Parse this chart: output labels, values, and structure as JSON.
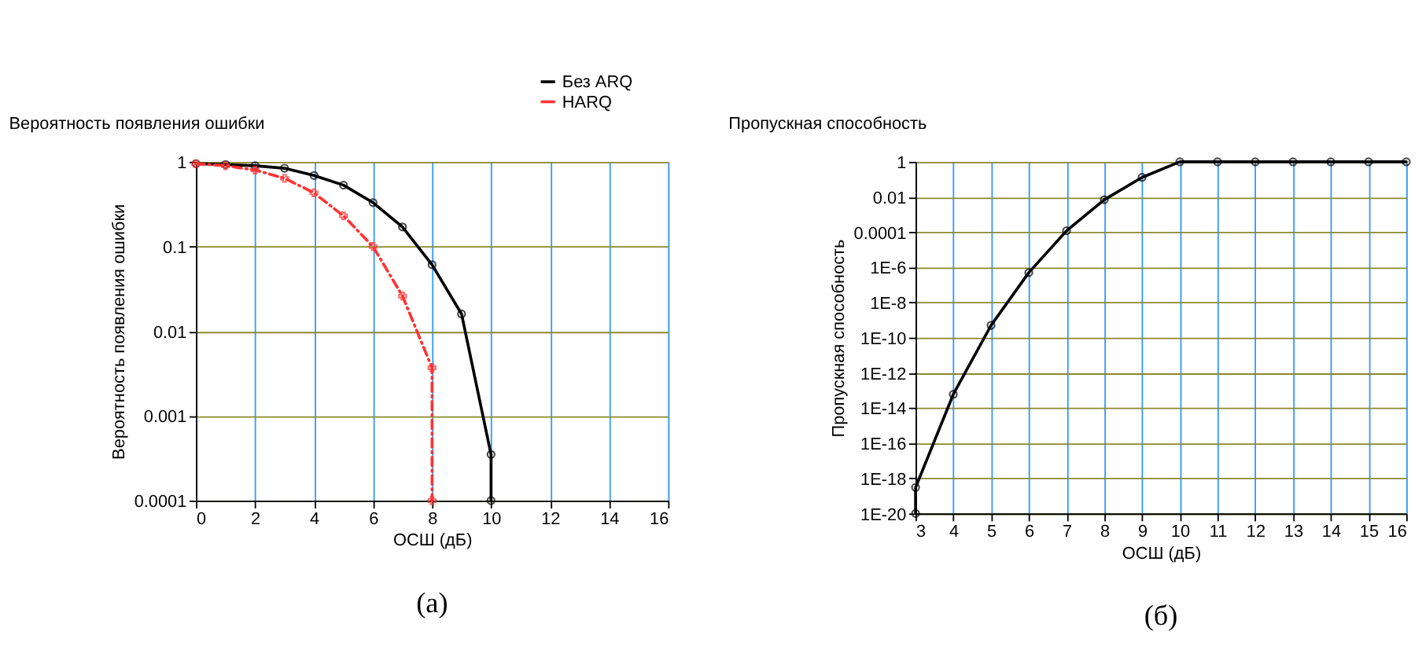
{
  "chart_data": [
    {
      "type": "line",
      "title": "Вероятность появления ошибки",
      "xlabel": "ОСШ (дБ)",
      "ylabel": "Вероятность появления ошибки",
      "log": "y",
      "grid": true,
      "legend": "top right",
      "xlim": [
        0,
        16
      ],
      "xticks": [
        0,
        2,
        4,
        6,
        8,
        10,
        12,
        14,
        16
      ],
      "ylim": [
        0.0001,
        1
      ],
      "yticks": [
        0.0001,
        0.001,
        0.01,
        0.1,
        1
      ],
      "annotations": [
        "(а)"
      ],
      "series": [
        {
          "name": "Без ARQ",
          "color": "#000000",
          "marker": "circle",
          "line_style": "solid",
          "x": [
            0,
            1,
            2,
            3,
            4,
            5,
            6,
            7,
            8,
            9,
            10,
            10
          ],
          "values": [
            0.95,
            0.93,
            0.9,
            0.84,
            0.69,
            0.53,
            0.33,
            0.17,
            0.061,
            0.016,
            0.00035,
            0.0001
          ]
        },
        {
          "name": "HARQ",
          "color": "#ff3333",
          "marker": "cross",
          "line_style": "dashed",
          "x": [
            0,
            1,
            2,
            3,
            4,
            5,
            6,
            7,
            8,
            8
          ],
          "values": [
            0.95,
            0.9,
            0.8,
            0.64,
            0.43,
            0.23,
            0.1,
            0.026,
            0.0037,
            0.0001
          ]
        }
      ]
    },
    {
      "type": "line",
      "title": "Пропускная способность",
      "xlabel": "ОСШ (дБ)",
      "ylabel": "Пропускная способность",
      "log": "y",
      "grid": true,
      "xlim": [
        3,
        16
      ],
      "xticks": [
        3,
        4,
        5,
        6,
        7,
        8,
        9,
        10,
        11,
        12,
        13,
        14,
        15,
        16
      ],
      "ylim": [
        1e-20,
        1
      ],
      "yticks": [
        {
          "value": 1e-20,
          "label": "1E-20"
        },
        {
          "value": 1e-18,
          "label": "1E-18"
        },
        {
          "value": 1e-16,
          "label": "1E-16"
        },
        {
          "value": 1e-14,
          "label": "1E-14"
        },
        {
          "value": 1e-12,
          "label": "1E-12"
        },
        {
          "value": 1e-10,
          "label": "1E-10"
        },
        {
          "value": 1e-08,
          "label": "1E-8"
        },
        {
          "value": 1e-06,
          "label": "1E-6"
        },
        0.0001,
        0.01,
        1
      ],
      "annotations": [
        "(б)"
      ],
      "series": [
        {
          "color": "#000000",
          "marker": "circle",
          "line_style": "solid",
          "x": [
            3,
            3,
            4,
            5,
            6,
            7,
            8,
            9,
            10,
            11,
            12,
            13,
            14,
            15,
            16
          ],
          "values": [
            1e-20,
            3e-19,
            6e-14,
            5e-10,
            5e-07,
            0.00012,
            0.007,
            0.13,
            1,
            1,
            1,
            1,
            1,
            1,
            1
          ]
        }
      ]
    }
  ]
}
